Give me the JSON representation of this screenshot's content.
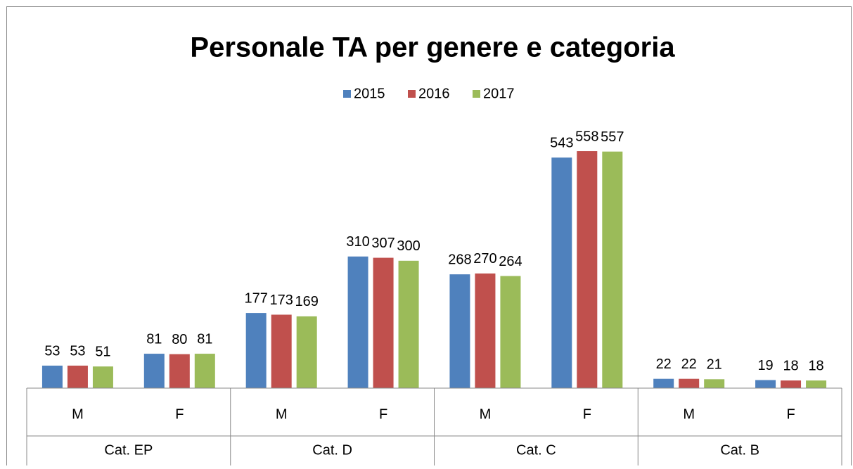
{
  "chart_data": {
    "type": "bar",
    "title": "Personale TA per genere e categoria",
    "categories": [
      "M",
      "F",
      "M",
      "F",
      "M",
      "F",
      "M",
      "F"
    ],
    "groups": [
      "Cat. EP",
      "Cat. D",
      "Cat. C",
      "Cat. B"
    ],
    "series": [
      {
        "name": "2015",
        "color": "#4f81bd",
        "values": [
          53,
          81,
          177,
          310,
          268,
          543,
          22,
          19
        ]
      },
      {
        "name": "2016",
        "color": "#c0504d",
        "values": [
          53,
          80,
          173,
          307,
          270,
          558,
          22,
          18
        ]
      },
      {
        "name": "2017",
        "color": "#9bbb59",
        "values": [
          51,
          81,
          169,
          300,
          264,
          557,
          21,
          18
        ]
      }
    ],
    "legend": "top"
  }
}
